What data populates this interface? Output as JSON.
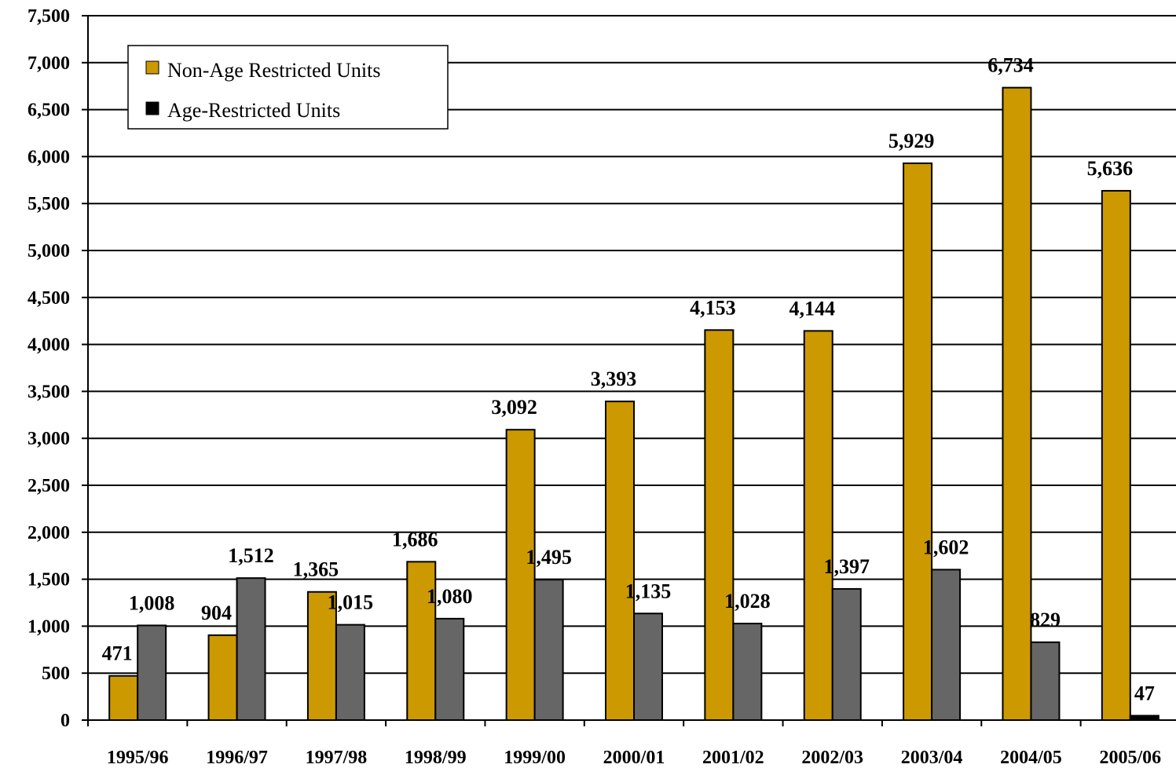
{
  "chart_data": {
    "type": "bar",
    "categories": [
      "1995/96",
      "1996/97",
      "1997/98",
      "1998/99",
      "1999/00",
      "2000/01",
      "2001/02",
      "2002/03",
      "2003/04",
      "2004/05",
      "2005/06"
    ],
    "series": [
      {
        "name": "Non-Age Restricted Units",
        "color": "#CC9900",
        "values": [
          471,
          904,
          1365,
          1686,
          3092,
          3393,
          4153,
          4144,
          5929,
          6734,
          5636
        ],
        "labels": [
          "471",
          "904",
          "1,365",
          "1,686",
          "3,092",
          "3,393",
          "4,153",
          "4,144",
          "5,929",
          "6,734",
          "5,636"
        ]
      },
      {
        "name": "Age-Restricted Units",
        "color": "#666666",
        "last_color": "#000000",
        "values": [
          1008,
          1512,
          1015,
          1080,
          1495,
          1135,
          1028,
          1397,
          1602,
          829,
          47
        ],
        "labels": [
          "1,008",
          "1,512",
          "1,015",
          "1,080",
          "1,495",
          "1,135",
          "1,028",
          "1,397",
          "1,602",
          "829",
          "47"
        ]
      }
    ],
    "y_ticks": [
      "0",
      "500",
      "1,000",
      "1,500",
      "2,000",
      "2,500",
      "3,000",
      "3,500",
      "4,000",
      "4,500",
      "5,000",
      "5,500",
      "6,000",
      "6,500",
      "7,000",
      "7,500"
    ],
    "ylim": [
      0,
      7500
    ],
    "y_step": 500,
    "grid": true,
    "legend": {
      "position": "top-left",
      "swatch_colors": [
        "#CC9900",
        "#000000"
      ]
    }
  }
}
